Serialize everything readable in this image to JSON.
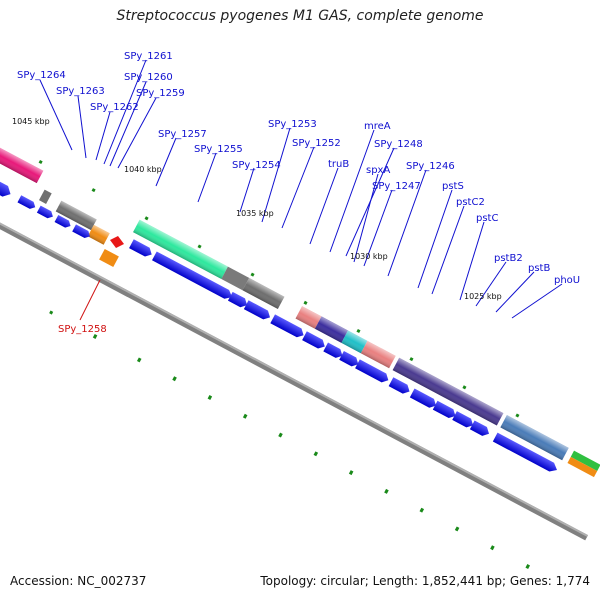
{
  "title": "Streptococcus pyogenes M1 GAS, complete genome",
  "footer": {
    "accession": "Accession: NC_002737",
    "summary": "Topology: circular; Length: 1,852,441 bp; Genes: 1,774"
  },
  "scale_labels": [
    "1045 kbp",
    "1040 kbp",
    "1035 kbp",
    "1030 kbp",
    "1025 kbp"
  ],
  "gene_labels": [
    "SPy_1264",
    "SPy_1263",
    "SPy_1262",
    "SPy_1261",
    "SPy_1260",
    "SPy_1259",
    "SPy_1258",
    "SPy_1257",
    "SPy_1255",
    "SPy_1254",
    "SPy_1253",
    "SPy_1252",
    "truB",
    "mreA",
    "SPy_1248",
    "spxA",
    "SPy_1247",
    "SPy_1246",
    "pstS",
    "pstC2",
    "pstC",
    "pstB2",
    "pstB",
    "phoU"
  ],
  "colors": {
    "label_default": "#1010d0",
    "label_highlight": "#d01010",
    "cds": "#1010ee",
    "backbone": "#808080"
  }
}
